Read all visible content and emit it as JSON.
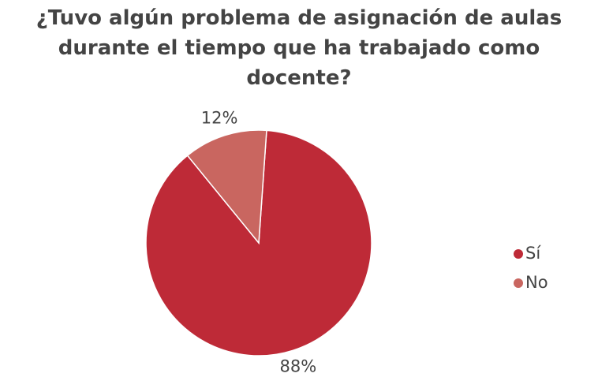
{
  "chart_data": {
    "type": "pie",
    "title": "¿Tuvo algún problema de asignación de aulas durante el tiempo que ha trabajado como docente?",
    "categories": [
      "Sí",
      "No"
    ],
    "values": [
      88,
      12
    ],
    "value_labels": [
      "88%",
      "12%"
    ],
    "colors": [
      "#be2a37",
      "#c96660"
    ],
    "legend": "right"
  }
}
